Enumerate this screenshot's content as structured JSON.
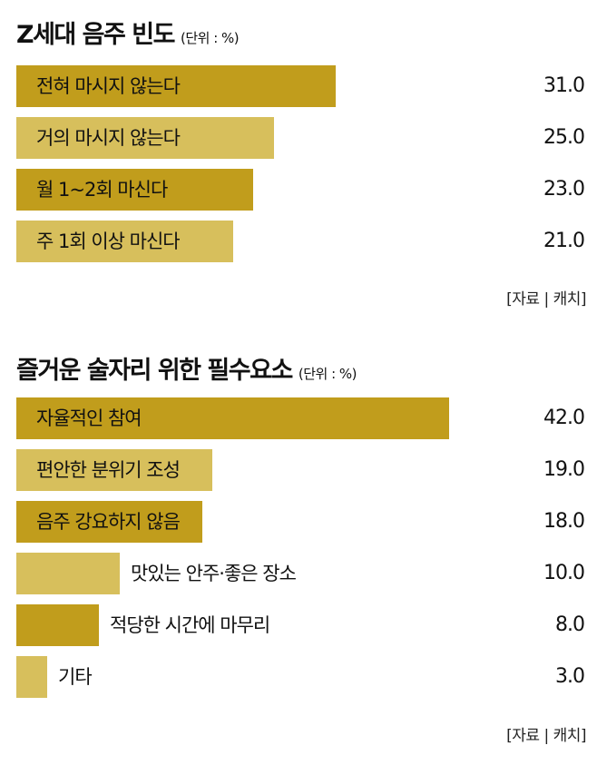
{
  "colors": {
    "dark_bar": "#c19d1c",
    "light_bar": "#d7bf5c"
  },
  "chart_data": [
    {
      "type": "bar",
      "orientation": "horizontal",
      "title": "Z세대 음주 빈도",
      "unit": "(단위 : %)",
      "categories": [
        "전혀 마시지 않는다",
        "거의 마시지 않는다",
        "월 1~2회 마신다",
        "주 1회 이상 마신다"
      ],
      "values": [
        31.0,
        25.0,
        23.0,
        21.0
      ],
      "value_labels": [
        "31.0",
        "25.0",
        "23.0",
        "21.0"
      ],
      "bar_colors": [
        "#c19d1c",
        "#d7bf5c",
        "#c19d1c",
        "#d7bf5c"
      ],
      "xlim": [
        0,
        44
      ],
      "source": "[자료 | 캐치]"
    },
    {
      "type": "bar",
      "orientation": "horizontal",
      "title": "즐거운 술자리 위한 필수요소",
      "unit": "(단위 : %)",
      "categories": [
        "자율적인 참여",
        "편안한 분위기 조성",
        "음주 강요하지 않음",
        "맛있는 안주·좋은 장소",
        "적당한 시간에 마무리",
        "기타"
      ],
      "values": [
        42.0,
        19.0,
        18.0,
        10.0,
        8.0,
        3.0
      ],
      "value_labels": [
        "42.0",
        "19.0",
        "18.0",
        "10.0",
        "8.0",
        "3.0"
      ],
      "bar_colors": [
        "#c19d1c",
        "#d7bf5c",
        "#c19d1c",
        "#d7bf5c",
        "#c19d1c",
        "#d7bf5c"
      ],
      "xlim": [
        0,
        44
      ],
      "source": "[자료 | 캐치]"
    }
  ]
}
